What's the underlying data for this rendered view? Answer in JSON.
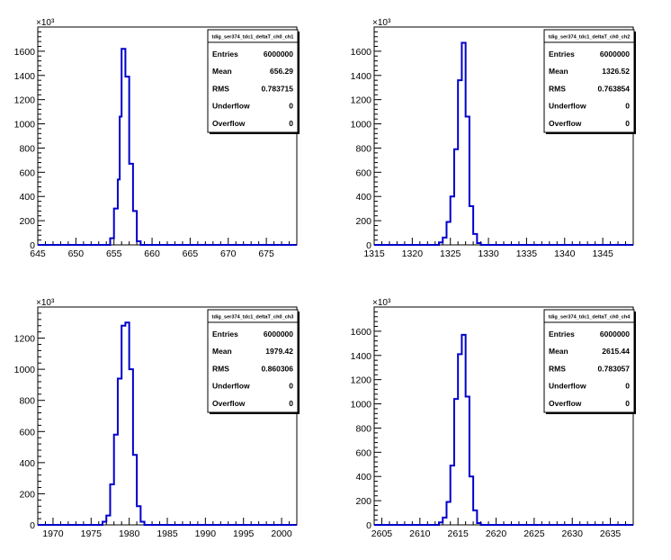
{
  "chart_data": [
    {
      "type": "histogram",
      "stats_title": "tdig_ser374_tdc1_deltaT_ch0_ch1",
      "stats": [
        {
          "key": "Entries",
          "value": "6000000"
        },
        {
          "key": "Mean",
          "value": "656.29"
        },
        {
          "key": "RMS",
          "value": "0.783715"
        },
        {
          "key": "Underflow",
          "value": "0"
        },
        {
          "key": "Overflow",
          "value": "0"
        }
      ],
      "xlim": [
        645,
        679
      ],
      "ylim": [
        0,
        1800
      ],
      "y_exponent": "×10³",
      "xticks": [
        645,
        650,
        655,
        660,
        665,
        670,
        675
      ],
      "yticks": [
        0,
        200,
        400,
        600,
        800,
        1000,
        1200,
        1400,
        1600
      ],
      "bins": [
        {
          "x0": 654.5,
          "x1": 655.0,
          "y": 55
        },
        {
          "x0": 655.0,
          "x1": 655.5,
          "y": 300
        },
        {
          "x0": 655.5,
          "x1": 655.75,
          "y": 540
        },
        {
          "x0": 655.75,
          "x1": 656.0,
          "y": 1060
        },
        {
          "x0": 656.0,
          "x1": 656.5,
          "y": 1620
        },
        {
          "x0": 656.5,
          "x1": 657.0,
          "y": 1390
        },
        {
          "x0": 657.0,
          "x1": 657.5,
          "y": 670
        },
        {
          "x0": 657.5,
          "x1": 658.0,
          "y": 280
        },
        {
          "x0": 658.0,
          "x1": 658.5,
          "y": 30
        }
      ]
    },
    {
      "type": "histogram",
      "stats_title": "tdig_ser374_tdc1_deltaT_ch0_ch2",
      "stats": [
        {
          "key": "Entries",
          "value": "6000000"
        },
        {
          "key": "Mean",
          "value": "1326.52"
        },
        {
          "key": "RMS",
          "value": "0.763854"
        },
        {
          "key": "Underflow",
          "value": "0"
        },
        {
          "key": "Overflow",
          "value": "0"
        }
      ],
      "xlim": [
        1315,
        1349
      ],
      "ylim": [
        0,
        1800
      ],
      "y_exponent": "×10³",
      "xticks": [
        1315,
        1320,
        1325,
        1330,
        1335,
        1340,
        1345
      ],
      "yticks": [
        0,
        200,
        400,
        600,
        800,
        1000,
        1200,
        1400,
        1600
      ],
      "bins": [
        {
          "x0": 1323.5,
          "x1": 1324.0,
          "y": 20
        },
        {
          "x0": 1324.0,
          "x1": 1324.5,
          "y": 60
        },
        {
          "x0": 1324.5,
          "x1": 1325.0,
          "y": 190
        },
        {
          "x0": 1325.0,
          "x1": 1325.5,
          "y": 400
        },
        {
          "x0": 1325.5,
          "x1": 1326.0,
          "y": 790
        },
        {
          "x0": 1326.0,
          "x1": 1326.5,
          "y": 1360
        },
        {
          "x0": 1326.5,
          "x1": 1327.0,
          "y": 1670
        },
        {
          "x0": 1327.0,
          "x1": 1327.5,
          "y": 1060
        },
        {
          "x0": 1327.5,
          "x1": 1328.0,
          "y": 320
        },
        {
          "x0": 1328.0,
          "x1": 1328.5,
          "y": 90
        },
        {
          "x0": 1328.5,
          "x1": 1329.0,
          "y": 15
        }
      ]
    },
    {
      "type": "histogram",
      "stats_title": "tdig_ser374_tdc1_deltaT_ch0_ch3",
      "stats": [
        {
          "key": "Entries",
          "value": "6000000"
        },
        {
          "key": "Mean",
          "value": "1979.42"
        },
        {
          "key": "RMS",
          "value": "0.860306"
        },
        {
          "key": "Underflow",
          "value": "0"
        },
        {
          "key": "Overflow",
          "value": "0"
        }
      ],
      "xlim": [
        1968,
        2002
      ],
      "ylim": [
        0,
        1400
      ],
      "y_exponent": "×10³",
      "xticks": [
        1970,
        1975,
        1980,
        1985,
        1990,
        1995,
        2000
      ],
      "yticks": [
        0,
        200,
        400,
        600,
        800,
        1000,
        1200
      ],
      "bins": [
        {
          "x0": 1976.5,
          "x1": 1977.0,
          "y": 20
        },
        {
          "x0": 1977.0,
          "x1": 1977.5,
          "y": 60
        },
        {
          "x0": 1977.5,
          "x1": 1978.0,
          "y": 260
        },
        {
          "x0": 1978.0,
          "x1": 1978.5,
          "y": 580
        },
        {
          "x0": 1978.5,
          "x1": 1979.0,
          "y": 940
        },
        {
          "x0": 1979.0,
          "x1": 1979.5,
          "y": 1280
        },
        {
          "x0": 1979.5,
          "x1": 1980.0,
          "y": 1300
        },
        {
          "x0": 1980.0,
          "x1": 1980.5,
          "y": 1000
        },
        {
          "x0": 1980.5,
          "x1": 1981.0,
          "y": 450
        },
        {
          "x0": 1981.0,
          "x1": 1981.5,
          "y": 120
        },
        {
          "x0": 1981.5,
          "x1": 1982.0,
          "y": 20
        }
      ]
    },
    {
      "type": "histogram",
      "stats_title": "tdig_ser374_tdc1_deltaT_ch0_ch4",
      "stats": [
        {
          "key": "Entries",
          "value": "6000000"
        },
        {
          "key": "Mean",
          "value": "2615.44"
        },
        {
          "key": "RMS",
          "value": "0.783057"
        },
        {
          "key": "Underflow",
          "value": "0"
        },
        {
          "key": "Overflow",
          "value": "0"
        }
      ],
      "xlim": [
        2604,
        2638
      ],
      "ylim": [
        0,
        1800
      ],
      "y_exponent": "×10³",
      "xticks": [
        2605,
        2610,
        2615,
        2620,
        2625,
        2630,
        2635
      ],
      "yticks": [
        0,
        200,
        400,
        600,
        800,
        1000,
        1200,
        1400,
        1600
      ],
      "bins": [
        {
          "x0": 2612.5,
          "x1": 2613.0,
          "y": 20
        },
        {
          "x0": 2613.0,
          "x1": 2613.5,
          "y": 60
        },
        {
          "x0": 2613.5,
          "x1": 2614.0,
          "y": 190
        },
        {
          "x0": 2614.0,
          "x1": 2614.5,
          "y": 490
        },
        {
          "x0": 2614.5,
          "x1": 2615.0,
          "y": 1040
        },
        {
          "x0": 2615.0,
          "x1": 2615.5,
          "y": 1410
        },
        {
          "x0": 2615.5,
          "x1": 2616.0,
          "y": 1570
        },
        {
          "x0": 2616.0,
          "x1": 2616.5,
          "y": 1060
        },
        {
          "x0": 2616.5,
          "x1": 2617.0,
          "y": 400
        },
        {
          "x0": 2617.0,
          "x1": 2617.5,
          "y": 120
        },
        {
          "x0": 2617.5,
          "x1": 2618.0,
          "y": 15
        }
      ]
    }
  ]
}
